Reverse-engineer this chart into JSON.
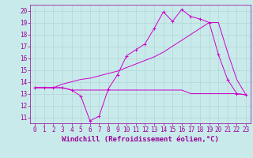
{
  "xlabel": "Windchill (Refroidissement éolien,°C)",
  "bg_color": "#c8eaea",
  "grid_color": "#b0d0d0",
  "line_color": "#cc00cc",
  "xlim": [
    -0.5,
    23.5
  ],
  "ylim": [
    10.5,
    20.5
  ],
  "yticks": [
    11,
    12,
    13,
    14,
    15,
    16,
    17,
    18,
    19,
    20
  ],
  "xticks": [
    0,
    1,
    2,
    3,
    4,
    5,
    6,
    7,
    8,
    9,
    10,
    11,
    12,
    13,
    14,
    15,
    16,
    17,
    18,
    19,
    20,
    21,
    22,
    23
  ],
  "line1_x": [
    0,
    1,
    2,
    3,
    4,
    5,
    6,
    7,
    8,
    9,
    10,
    11,
    12,
    13,
    14,
    15,
    16,
    17,
    18,
    19,
    20,
    21,
    22,
    23
  ],
  "line1_y": [
    13.5,
    13.5,
    13.5,
    13.5,
    13.3,
    12.8,
    10.7,
    11.1,
    13.4,
    14.6,
    16.2,
    16.7,
    17.2,
    18.5,
    19.9,
    19.1,
    20.1,
    19.5,
    19.3,
    19.0,
    16.3,
    14.2,
    13.0,
    12.9
  ],
  "line2_x": [
    0,
    1,
    2,
    3,
    4,
    5,
    6,
    7,
    8,
    9,
    10,
    11,
    12,
    13,
    14,
    15,
    16,
    17,
    18,
    19,
    20,
    21,
    22,
    23
  ],
  "line2_y": [
    13.5,
    13.5,
    13.5,
    13.5,
    13.3,
    13.3,
    13.3,
    13.3,
    13.3,
    13.3,
    13.3,
    13.3,
    13.3,
    13.3,
    13.3,
    13.3,
    13.3,
    13.0,
    13.0,
    13.0,
    13.0,
    13.0,
    13.0,
    12.9
  ],
  "line3_x": [
    0,
    1,
    2,
    3,
    4,
    5,
    6,
    7,
    8,
    9,
    10,
    11,
    12,
    13,
    14,
    15,
    16,
    17,
    18,
    19,
    20,
    21,
    22,
    23
  ],
  "line3_y": [
    13.5,
    13.5,
    13.5,
    13.8,
    14.0,
    14.2,
    14.3,
    14.5,
    14.7,
    14.9,
    15.2,
    15.5,
    15.8,
    16.1,
    16.5,
    17.0,
    17.5,
    18.0,
    18.5,
    19.0,
    19.0,
    16.5,
    14.2,
    12.9
  ],
  "font_color": "#990099",
  "tick_fontsize": 5.5,
  "label_fontsize": 6.5,
  "marker": "+"
}
